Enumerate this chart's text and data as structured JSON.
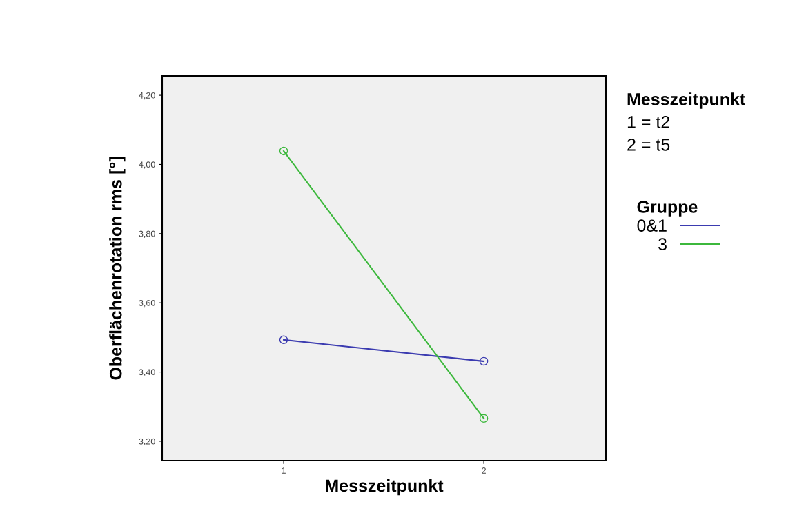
{
  "chart_data": {
    "type": "line",
    "xlabel": "Messzeitpunkt",
    "ylabel": "Oberflächenrotation rms [°]",
    "categories": [
      "1",
      "2"
    ],
    "series": [
      {
        "name": "0&1",
        "color": "#3b3bb0",
        "values": [
          3.493,
          3.431
        ]
      },
      {
        "name": "3",
        "color": "#3cb83c",
        "values": [
          4.039,
          3.266
        ]
      }
    ],
    "ylim": [
      3.144,
      4.256
    ],
    "yticks": [
      {
        "value": 3.2,
        "label": "3,20"
      },
      {
        "value": 3.4,
        "label": "3,40"
      },
      {
        "value": 3.6,
        "label": "3,60"
      },
      {
        "value": 3.8,
        "label": "3,80"
      },
      {
        "value": 4.0,
        "label": "4,00"
      },
      {
        "value": 4.2,
        "label": "4,20"
      }
    ],
    "legend_title": "Gruppe",
    "legend": "right",
    "annotations": [
      "Messzeitpunkt",
      "1 = t2",
      "2 = t5"
    ],
    "marker": "circle",
    "line_style": "solid",
    "grid": false
  }
}
